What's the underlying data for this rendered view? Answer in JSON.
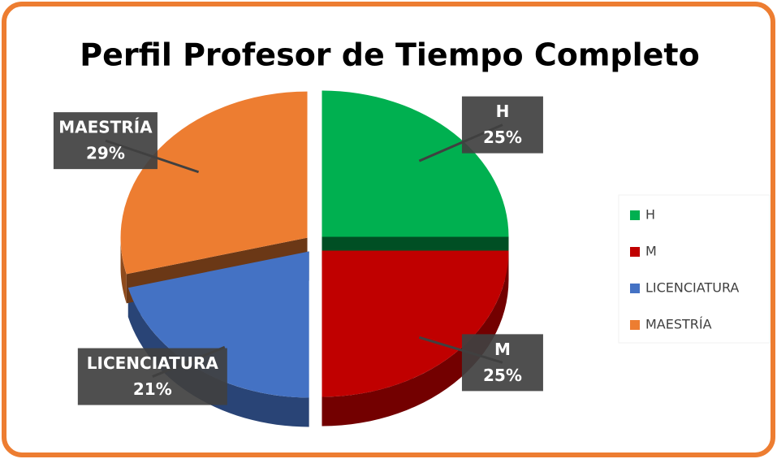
{
  "chart_data": {
    "type": "pie",
    "title": "Perfil Profesor de Tiempo Completo",
    "categories": [
      "H",
      "M",
      "LICENCIATURA",
      "MAESTRÍA"
    ],
    "values": [
      25,
      25,
      21,
      29
    ],
    "value_labels": [
      "25%",
      "25%",
      "21%",
      "29%"
    ],
    "colors": [
      "#00b050",
      "#c00000",
      "#4472c4",
      "#ed7d31"
    ],
    "legend": "right"
  }
}
